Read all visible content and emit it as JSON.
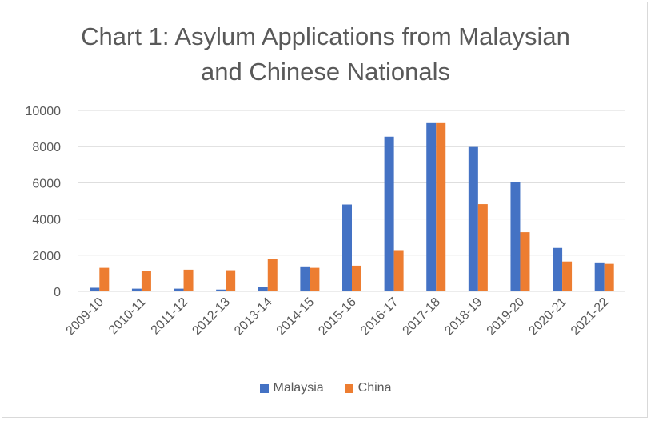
{
  "chart_data": {
    "type": "bar",
    "title": [
      "Chart 1: Asylum Applications from Malaysian",
      "and Chinese Nationals"
    ],
    "xlabel": "",
    "ylabel": "",
    "categories": [
      "2009-10",
      "2010-11",
      "2011-12",
      "2012-13",
      "2013-14",
      "2014-15",
      "2015-16",
      "2016-17",
      "2017-18",
      "2018-19",
      "2019-20",
      "2020-21",
      "2021-22"
    ],
    "series": [
      {
        "name": "Malaysia",
        "color": "#4472C4",
        "values": [
          200,
          150,
          150,
          100,
          250,
          1380,
          4800,
          8550,
          9300,
          7980,
          6030,
          2400,
          1600
        ]
      },
      {
        "name": "China",
        "color": "#ED7D31",
        "values": [
          1300,
          1120,
          1200,
          1170,
          1780,
          1300,
          1420,
          2280,
          9300,
          4820,
          3270,
          1650,
          1520
        ]
      }
    ],
    "ylim": [
      0,
      10000
    ],
    "yticks": [
      "0",
      "2000",
      "4000",
      "6000",
      "8000",
      "10000"
    ],
    "grid": true,
    "legend_position": "bottom"
  }
}
